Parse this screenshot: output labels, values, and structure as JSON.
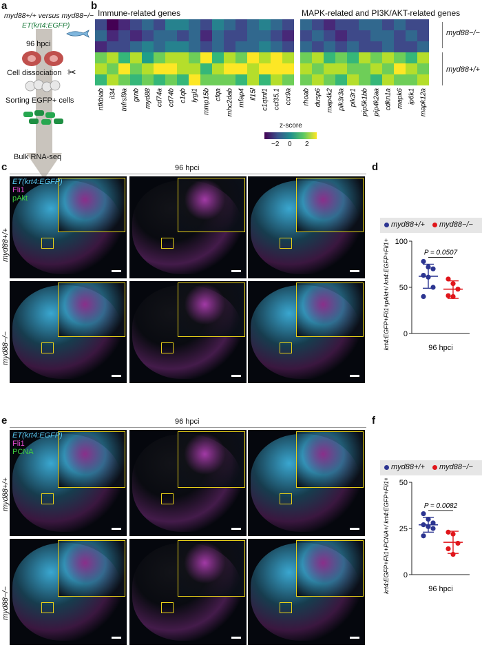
{
  "panel_labels": {
    "a": "a",
    "b": "b",
    "c": "c",
    "d": "d",
    "e": "e",
    "f": "f"
  },
  "panel_a": {
    "title_line1": "myd88+/+ versus myd88−/−",
    "title_line2": "ET(krt4:EGFP)",
    "step_time": "96 hpci",
    "step_dissociation": "Cell dissociation",
    "step_sorting": "Sorting EGFP+ cells",
    "step_bulk": "Bulk RNA-seq"
  },
  "panel_b": {
    "heatmap_left_title": "Immune-related genes",
    "heatmap_right_title": "MAPK-related and PI3K/AKT-related genes",
    "group_top": "myd88−/−",
    "group_bottom": "myd88+/+",
    "left_genes": [
      "nfkbiab",
      "il34",
      "tnfrsf9a",
      "grnb",
      "myd88",
      "cd74a",
      "cd74b",
      "c1qb",
      "lygl1",
      "mmp15b",
      "cfqa",
      "mhc2dab",
      "mfap4",
      "il15l",
      "c1qtnf1",
      "ccl35.1",
      "ccr9a"
    ],
    "right_genes": [
      "rhoab",
      "dusp6",
      "map4k2",
      "pik3r3a",
      "pik3r1",
      "pip5k1bb",
      "pip4k2aa",
      "cdkn1a",
      "mapk6",
      "ip6k1",
      "mapk12a"
    ],
    "colorbar_title": "z-score",
    "colorbar_ticks": [
      "−2",
      "0",
      "2"
    ],
    "colors": {
      "low": "#440154",
      "mid": "#21908d",
      "high": "#fde725"
    }
  },
  "panel_c": {
    "title": "96 hpci",
    "channel_1": "ET(krt4:EGFP)",
    "channel_2": "Fli1",
    "channel_3": "pAkt",
    "row_top": "myd88+/+",
    "row_bottom": "myd88−/−"
  },
  "panel_e": {
    "title": "96 hpci",
    "channel_1": "ET(krt4:EGFP)",
    "channel_2": "Fli1",
    "channel_3": "PCNA",
    "row_top": "myd88+/+",
    "row_bottom": "myd88−/−"
  },
  "legend": {
    "wt": "myd88+/+",
    "ko": "myd88−/−",
    "wt_color": "#2c3591",
    "ko_color": "#e0161b"
  },
  "chart_data": [
    {
      "type": "scatter",
      "panel": "d",
      "ylabel": "krt4:EGFP+Fli1+pAkt+/ krt4:EGFP+Fli1+ cells",
      "xlabel": "96 hpci",
      "ylim": [
        0,
        100
      ],
      "yticks": [
        0,
        50,
        100
      ],
      "p_value": "P = 0.0507",
      "series": [
        {
          "name": "myd88+/+",
          "values": [
            78,
            72,
            70,
            63,
            61,
            50,
            40
          ],
          "mean": 62,
          "sd_low": 49,
          "sd_high": 75
        },
        {
          "name": "myd88−/−",
          "values": [
            59,
            54,
            48,
            41,
            40
          ],
          "mean": 48,
          "sd_low": 38,
          "sd_high": 57
        }
      ]
    },
    {
      "type": "scatter",
      "panel": "f",
      "ylabel": "krt4:EGFP+Fli1+PCNA+/ krt4:EGFP+Fli1+ cells",
      "xlabel": "96 hpci",
      "ylim": [
        0,
        50
      ],
      "yticks": [
        0,
        25,
        50
      ],
      "p_value": "P = 0.0082",
      "series": [
        {
          "name": "myd88+/+",
          "values": [
            33,
            30,
            28,
            27,
            26,
            25,
            21
          ],
          "mean": 27,
          "sd_low": 23,
          "sd_high": 31
        },
        {
          "name": "myd88−/−",
          "values": [
            23,
            22,
            17,
            14,
            11
          ],
          "mean": 17.5,
          "sd_low": 11.5,
          "sd_high": 23.5
        }
      ]
    }
  ]
}
